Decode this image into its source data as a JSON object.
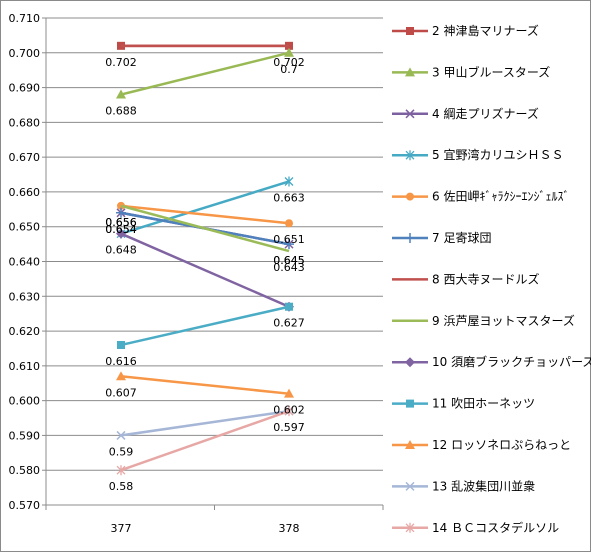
{
  "chart_data": {
    "type": "line",
    "categories": [
      "377",
      "378"
    ],
    "ylim": [
      0.57,
      0.71
    ],
    "ytick_step": 0.01,
    "ytick_labels": [
      "0.570",
      "0.580",
      "0.590",
      "0.600",
      "0.610",
      "0.620",
      "0.630",
      "0.640",
      "0.650",
      "0.660",
      "0.670",
      "0.680",
      "0.690",
      "0.700",
      "0.710"
    ],
    "grid": true,
    "legend_position": "right",
    "series": [
      {
        "name": "2 神津島マリナーズ",
        "values": [
          0.702,
          0.702
        ],
        "labels": [
          "0.702",
          "0.702"
        ],
        "color": "#be4b48",
        "marker": "square"
      },
      {
        "name": "3 甲山ブルースターズ",
        "values": [
          0.688,
          0.7
        ],
        "labels": [
          "0.688",
          "0.7"
        ],
        "color": "#98b954",
        "marker": "triangle"
      },
      {
        "name": "4 綱走プリズナーズ",
        "values": [
          0.654,
          0.645
        ],
        "labels": [
          "0.654",
          "0.645"
        ],
        "color": "#7d60a0",
        "marker": "x"
      },
      {
        "name": "5 宜野湾カリユシＨＳＳ",
        "values": [
          0.648,
          0.663
        ],
        "labels": [
          "0.648",
          "0.663"
        ],
        "color": "#46aac5",
        "marker": "star"
      },
      {
        "name": "6 佐田岬ｷﾞｬﾗｸｼｰｴﾝｼﾞｪﾙｽﾞ",
        "values": [
          0.656,
          0.651
        ],
        "labels": [
          "0.656",
          "0.651"
        ],
        "color": "#f79646",
        "marker": "circle"
      },
      {
        "name": "7 足寄球団",
        "values": [
          0.654,
          0.645
        ],
        "labels": [
          "0.654",
          "0.645"
        ],
        "color": "#4f81bd",
        "marker": "plus"
      },
      {
        "name": "8 西大寺ヌードルズ",
        "values": [
          0.702,
          0.702
        ],
        "labels": [
          "",
          ""
        ],
        "color": "#c0504d",
        "marker": "none"
      },
      {
        "name": "9 浜芦屋ヨットマスターズ",
        "values": [
          0.656,
          0.643
        ],
        "labels": [
          "0.656",
          "0.643"
        ],
        "color": "#9bbb59",
        "marker": "none"
      },
      {
        "name": "10 須磨ブラックチョッパーズ",
        "values": [
          0.648,
          0.627
        ],
        "labels": [
          "",
          "0.627"
        ],
        "color": "#8064a2",
        "marker": "diamond"
      },
      {
        "name": "11 吹田ホーネッツ",
        "values": [
          0.616,
          0.627
        ],
        "labels": [
          "0.616",
          ""
        ],
        "color": "#4bacc6",
        "marker": "square"
      },
      {
        "name": "12 ロッソネロぷらねっと",
        "values": [
          0.607,
          0.602
        ],
        "labels": [
          "0.607",
          "0.602"
        ],
        "color": "#f79646",
        "marker": "triangle"
      },
      {
        "name": "13 乱波集団川並衆",
        "values": [
          0.59,
          0.597
        ],
        "labels": [
          "0.59",
          ""
        ],
        "color": "#a5b6d6",
        "marker": "x"
      },
      {
        "name": "14 ＢＣコスタデルソル",
        "values": [
          0.58,
          0.597
        ],
        "labels": [
          "0.58",
          "0.597"
        ],
        "color": "#e6a7a5",
        "marker": "star"
      }
    ]
  }
}
